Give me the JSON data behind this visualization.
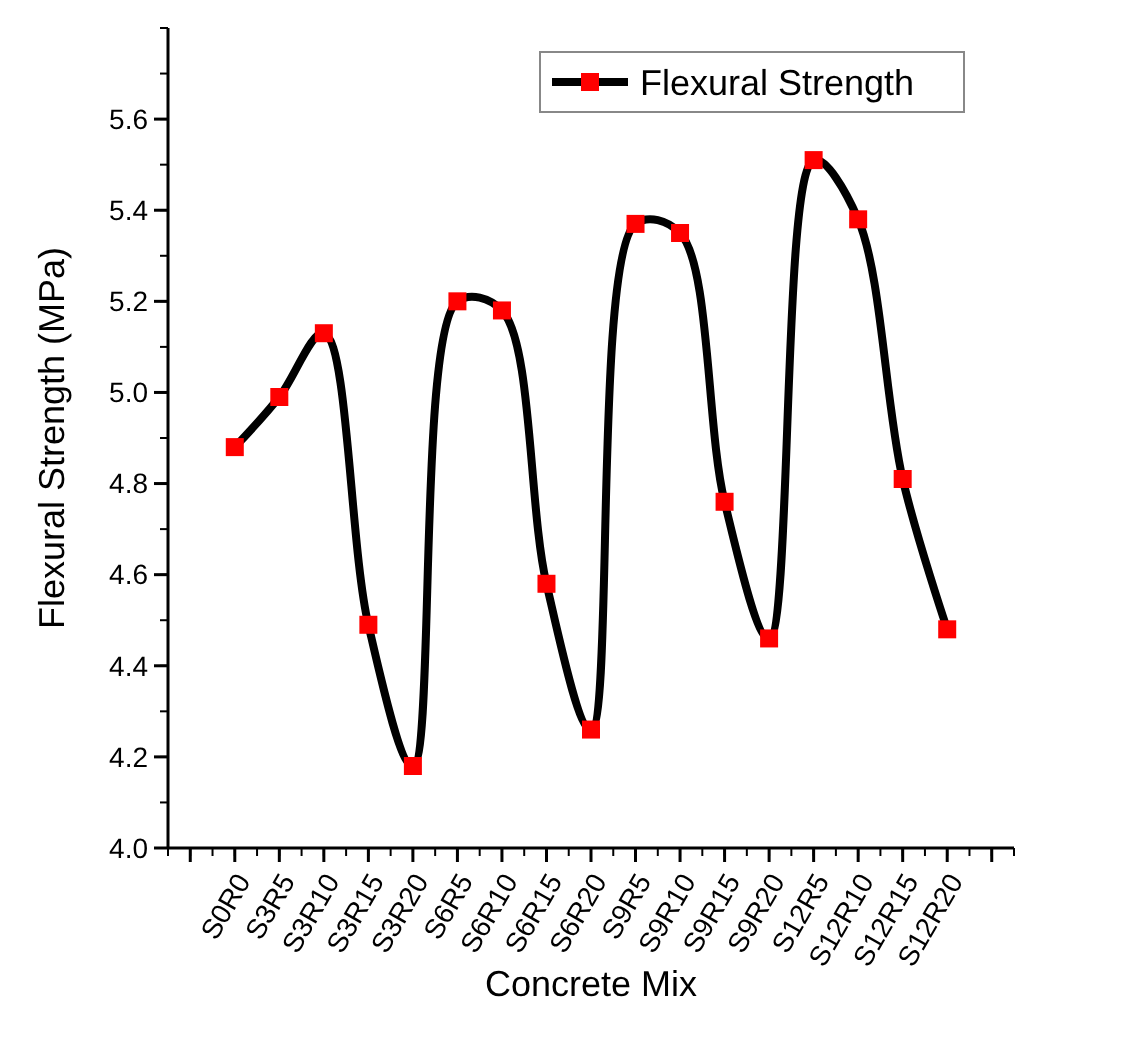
{
  "chart_data": {
    "type": "line",
    "xlabel": "Concrete Mix",
    "ylabel": "Flexural Strength (MPa)",
    "categories": [
      "S0R0",
      "S3R5",
      "S3R10",
      "S3R15",
      "S3R20",
      "S6R5",
      "S6R10",
      "S6R15",
      "S6R20",
      "S9R5",
      "S9R10",
      "S9R15",
      "S9R20",
      "S12R5",
      "S12R10",
      "S12R15",
      "S12R20"
    ],
    "series": [
      {
        "name": "Flexural Strength",
        "color": "#ff0000",
        "values": [
          4.88,
          4.99,
          5.13,
          4.49,
          4.18,
          5.2,
          5.18,
          4.58,
          4.26,
          5.37,
          5.35,
          4.76,
          4.46,
          5.51,
          5.38,
          4.81,
          4.48
        ]
      }
    ],
    "ylim": [
      4.0,
      5.8
    ],
    "yticks": [
      {
        "value": 4,
        "label": "4.0"
      },
      4.2,
      4.4,
      4.6,
      4.8,
      {
        "value": 5,
        "label": "5.0"
      },
      5.2,
      5.4,
      5.6
    ],
    "marker": "square",
    "line_style": "solid",
    "legend": "top right",
    "grid": false
  }
}
